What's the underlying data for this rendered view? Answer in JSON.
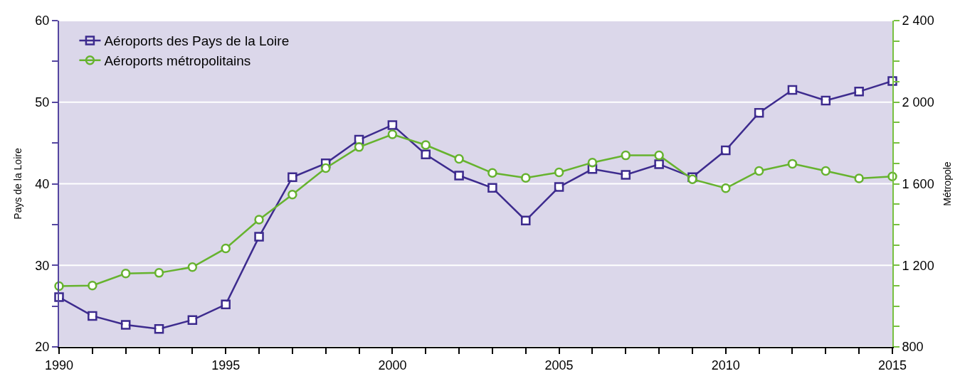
{
  "chart_data": {
    "type": "line",
    "ylabel": "Pays de la Loire",
    "y2label": "Métropole",
    "x": [
      1990,
      1991,
      1992,
      1993,
      1994,
      1995,
      1996,
      1997,
      1998,
      1999,
      2000,
      2001,
      2002,
      2003,
      2004,
      2005,
      2006,
      2007,
      2008,
      2009,
      2010,
      2011,
      2012,
      2013,
      2014,
      2015
    ],
    "xlim": [
      1990,
      2015
    ],
    "xticks": [
      1990,
      {
        "value": 1991,
        "label": null
      },
      {
        "value": 1992,
        "label": null
      },
      {
        "value": 1993,
        "label": null
      },
      {
        "value": 1994,
        "label": null
      },
      1995,
      {
        "value": 1996,
        "label": null
      },
      {
        "value": 1997,
        "label": null
      },
      {
        "value": 1998,
        "label": null
      },
      {
        "value": 1999,
        "label": null
      },
      2000,
      {
        "value": 2001,
        "label": null
      },
      {
        "value": 2002,
        "label": null
      },
      {
        "value": 2003,
        "label": null
      },
      {
        "value": 2004,
        "label": null
      },
      2005,
      {
        "value": 2006,
        "label": null
      },
      {
        "value": 2007,
        "label": null
      },
      {
        "value": 2008,
        "label": null
      },
      {
        "value": 2009,
        "label": null
      },
      2010,
      {
        "value": 2011,
        "label": null
      },
      {
        "value": 2012,
        "label": null
      },
      {
        "value": 2013,
        "label": null
      },
      {
        "value": 2014,
        "label": null
      },
      2015
    ],
    "ylim": [
      20,
      60
    ],
    "yticks": [
      20,
      {
        "value": 25,
        "label": null
      },
      30,
      {
        "value": 35,
        "label": null
      },
      40,
      {
        "value": 45,
        "label": null
      },
      50,
      {
        "value": 55,
        "label": null
      },
      60
    ],
    "y2lim": [
      800,
      2400
    ],
    "y2ticks": [
      {
        "value": 800,
        "label": "800"
      },
      {
        "value": 900,
        "label": null
      },
      {
        "value": 1000,
        "label": null
      },
      {
        "value": 1100,
        "label": null
      },
      {
        "value": 1200,
        "label": "1 200"
      },
      {
        "value": 1300,
        "label": null
      },
      {
        "value": 1400,
        "label": null
      },
      {
        "value": 1500,
        "label": null
      },
      {
        "value": 1600,
        "label": "1 600"
      },
      {
        "value": 1700,
        "label": null
      },
      {
        "value": 1800,
        "label": null
      },
      {
        "value": 1900,
        "label": null
      },
      {
        "value": 2000,
        "label": "2 000"
      },
      {
        "value": 2100,
        "label": null
      },
      {
        "value": 2200,
        "label": null
      },
      {
        "value": 2300,
        "label": null
      },
      {
        "value": 2400,
        "label": "2 400"
      }
    ],
    "grid": "y",
    "legend": "top left",
    "series": [
      {
        "name": "Aéroports des Pays de la Loire",
        "color": "#3d2b8e",
        "marker": "square",
        "values": [
          26.1,
          23.8,
          22.7,
          22.2,
          23.3,
          25.2,
          33.5,
          40.8,
          42.5,
          45.4,
          47.2,
          43.6,
          41.0,
          39.5,
          35.5,
          39.6,
          41.8,
          41.1,
          42.4,
          40.8,
          44.1,
          48.7,
          51.5,
          50.2,
          51.3,
          52.6
        ]
      },
      {
        "name": "Aéroports métropolitains",
        "color": "#66b32e",
        "marker": "circle",
        "axis": "y2",
        "values": [
          1098,
          1101,
          1160,
          1163,
          1191,
          1283,
          1424,
          1547,
          1677,
          1780,
          1842,
          1790,
          1722,
          1653,
          1629,
          1656,
          1704,
          1739,
          1739,
          1622,
          1578,
          1663,
          1698,
          1663,
          1626,
          1636
        ]
      }
    ]
  }
}
